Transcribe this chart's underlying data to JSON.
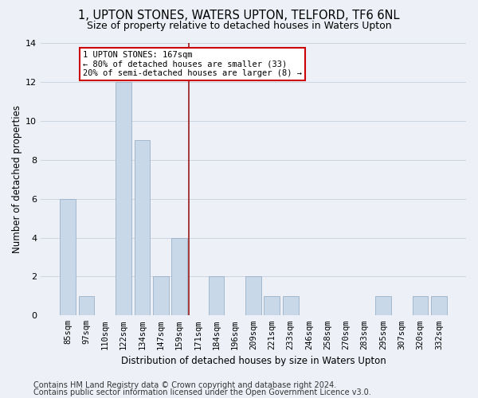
{
  "title": "1, UPTON STONES, WATERS UPTON, TELFORD, TF6 6NL",
  "subtitle": "Size of property relative to detached houses in Waters Upton",
  "xlabel": "Distribution of detached houses by size in Waters Upton",
  "ylabel": "Number of detached properties",
  "categories": [
    "85sqm",
    "97sqm",
    "110sqm",
    "122sqm",
    "134sqm",
    "147sqm",
    "159sqm",
    "171sqm",
    "184sqm",
    "196sqm",
    "209sqm",
    "221sqm",
    "233sqm",
    "246sqm",
    "258sqm",
    "270sqm",
    "283sqm",
    "295sqm",
    "307sqm",
    "320sqm",
    "332sqm"
  ],
  "values": [
    6,
    1,
    0,
    12,
    9,
    2,
    4,
    0,
    2,
    0,
    2,
    1,
    1,
    0,
    0,
    0,
    0,
    1,
    0,
    1,
    1
  ],
  "bar_color": "#c8d8e8",
  "bar_edgecolor": "#9ab0c8",
  "vline_x": 6.5,
  "vline_color": "#9b1a1a",
  "annotation_text": "1 UPTON STONES: 167sqm\n← 80% of detached houses are smaller (33)\n20% of semi-detached houses are larger (8) →",
  "annotation_box_facecolor": "#ffffff",
  "annotation_box_edgecolor": "#cc0000",
  "ylim": [
    0,
    14
  ],
  "yticks": [
    0,
    2,
    4,
    6,
    8,
    10,
    12,
    14
  ],
  "grid_color": "#ccd5e0",
  "bg_color": "#edf1f7",
  "footer1": "Contains HM Land Registry data © Crown copyright and database right 2024.",
  "footer2": "Contains public sector information licensed under the Open Government Licence v3.0.",
  "title_fontsize": 10.5,
  "subtitle_fontsize": 9,
  "xlabel_fontsize": 8.5,
  "ylabel_fontsize": 8.5,
  "tick_fontsize": 7.5,
  "ann_fontsize": 7.5,
  "footer_fontsize": 7
}
